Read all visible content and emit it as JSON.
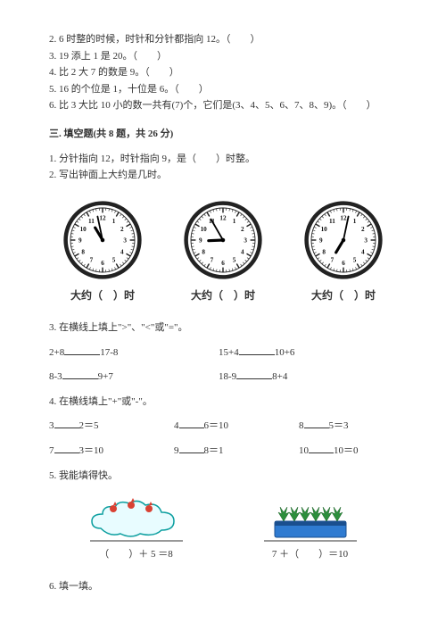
{
  "top_questions": [
    "2. 6 时整的时候，时针和分针都指向 12。（　　）",
    "3. 19 添上 1 是 20。（　　）",
    "4. 比 2 大 7 的数是 9。（　　）",
    "5. 16 的个位是 1，十位是 6。（　　）",
    "6. 比 3 大比 10 小的数一共有(7)个，它们是(3、4、5、6、7、8、9)。（　　）"
  ],
  "section3": {
    "title": "三. 填空题(共 8 题，共 26 分)",
    "q1": "1. 分针指向 12，时针指向 9，是（　　）时整。",
    "q2": "2. 写出钟面上大约是几时。",
    "q3": "3. 在横线上填上\">\"、\"<\"或\"=\"。",
    "q4": "4. 在横线填上\"+\"或\"-\"。",
    "q5": "5. 我能填得快。",
    "q6": "6. 填一填。"
  },
  "clocks": [
    {
      "hour": 10,
      "minute": 58,
      "label": "大约（　）时"
    },
    {
      "hour": 8,
      "minute": 55,
      "label": "大约（　）时"
    },
    {
      "hour": 7,
      "minute": 2,
      "label": "大约（　）时"
    }
  ],
  "compare": {
    "row1": {
      "a1": "2+8",
      "a2": "17-8",
      "b1": "15+4",
      "b2": "10+6"
    },
    "row2": {
      "a1": "8-3",
      "a2": "9+7",
      "b1": "18-9",
      "b2": "8+4"
    }
  },
  "fillop": {
    "row1": {
      "a": {
        "l": "3",
        "r": "2＝5"
      },
      "b": {
        "l": "4",
        "r": "6＝10"
      },
      "c": {
        "l": "8",
        "r": "5＝3"
      }
    },
    "row2": {
      "a": {
        "l": "7",
        "r": "3＝10"
      },
      "b": {
        "l": "9",
        "r": "8＝1"
      },
      "c": {
        "l": "10",
        "r": "10＝0"
      }
    }
  },
  "imgeq": {
    "left": "（　　）＋ 5 ＝8",
    "right": "7 ＋（　　）＝10"
  },
  "colors": {
    "text": "#333333",
    "ring": "#222222",
    "number": "#111111",
    "cloud_fill": "#e8fcff",
    "cloud_stroke": "#0a9e9f",
    "bird_red": "#d94133",
    "pot_blue": "#2f7bd1",
    "leaf_green": "#2c8f3c",
    "leaf_dark": "#155e21"
  }
}
